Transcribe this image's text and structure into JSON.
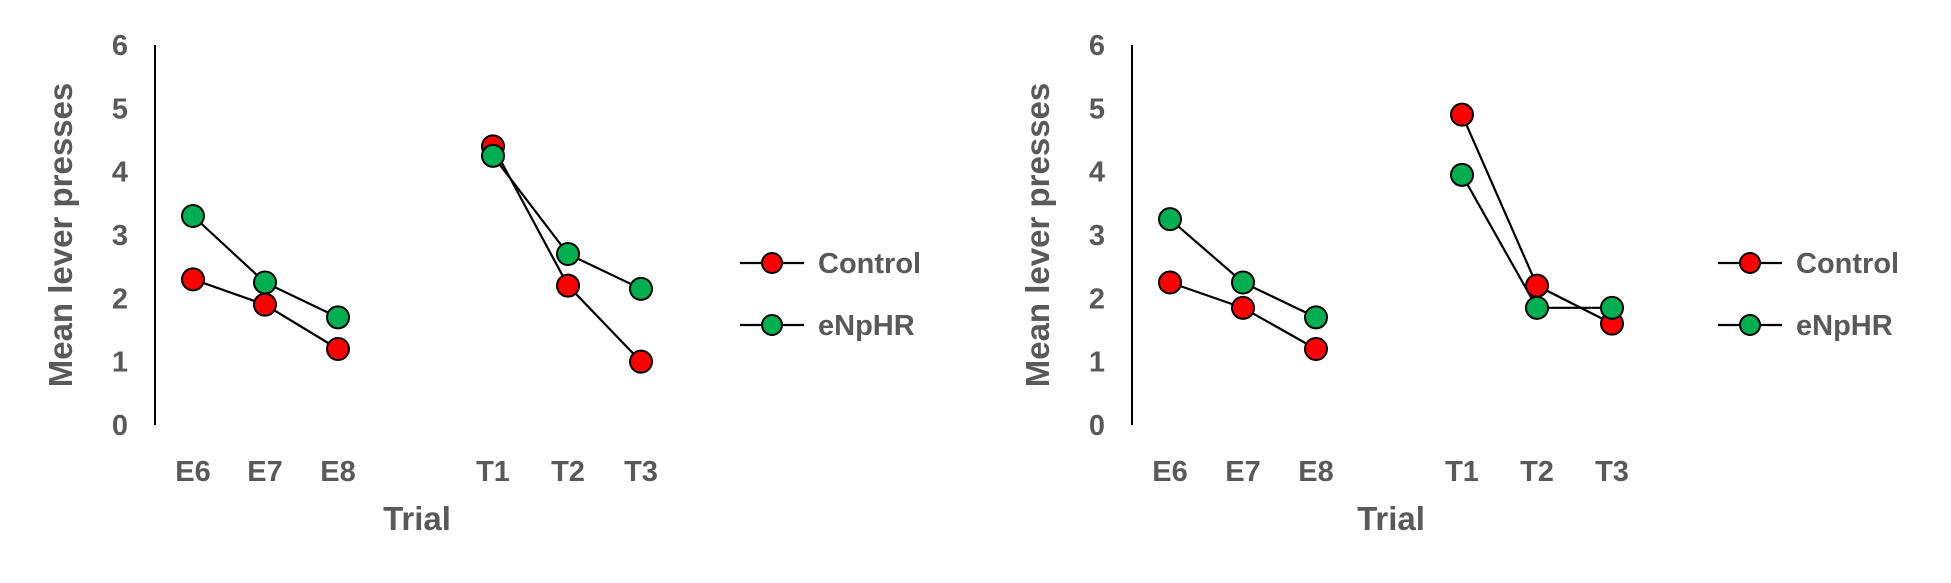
{
  "chart_data": [
    {
      "type": "line",
      "xlabel": "Trial",
      "ylabel": "Mean lever presses",
      "ylim": [
        0,
        6
      ],
      "yticks": [
        0,
        1,
        2,
        3,
        4,
        5,
        6
      ],
      "grid": false,
      "legend": "right",
      "categories": [
        "E6",
        "E7",
        "E8",
        "T1",
        "T2",
        "T3"
      ],
      "segments": [
        [
          "E6",
          "E7",
          "E8"
        ],
        [
          "T1",
          "T2",
          "T3"
        ]
      ],
      "series": [
        {
          "name": "Control",
          "color": "#ff0000",
          "values": [
            2.3,
            1.9,
            1.2,
            4.4,
            2.2,
            1.0
          ]
        },
        {
          "name": "eNpHR",
          "color": "#00b050",
          "values": [
            3.3,
            2.25,
            1.7,
            4.25,
            2.7,
            2.15
          ]
        }
      ]
    },
    {
      "type": "line",
      "xlabel": "Trial",
      "ylabel": "Mean lever presses",
      "ylim": [
        0,
        6
      ],
      "yticks": [
        0,
        1,
        2,
        3,
        4,
        5,
        6
      ],
      "grid": false,
      "legend": "right",
      "categories": [
        "E6",
        "E7",
        "E8",
        "T1",
        "T2",
        "T3"
      ],
      "segments": [
        [
          "E6",
          "E7",
          "E8"
        ],
        [
          "T1",
          "T2",
          "T3"
        ]
      ],
      "series": [
        {
          "name": "Control",
          "color": "#ff0000",
          "values": [
            2.25,
            1.85,
            1.2,
            4.9,
            2.2,
            1.6
          ]
        },
        {
          "name": "eNpHR",
          "color": "#00b050",
          "values": [
            3.25,
            2.25,
            1.7,
            3.95,
            1.85,
            1.85
          ]
        }
      ]
    }
  ]
}
